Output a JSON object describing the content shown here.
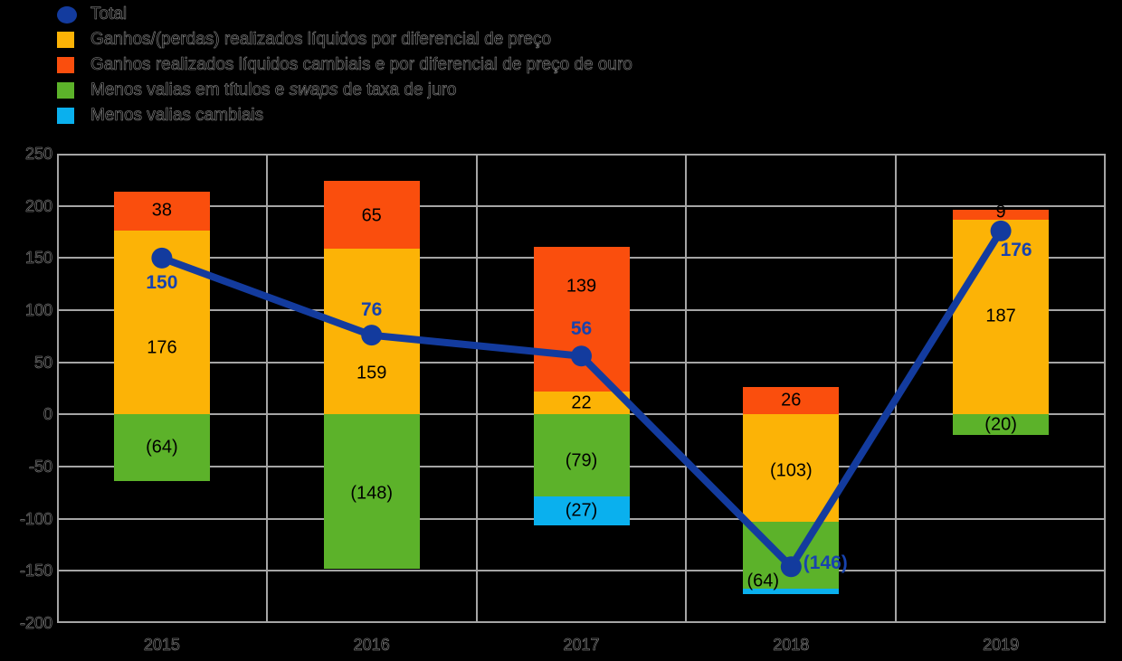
{
  "legend": {
    "items": [
      {
        "marker": "circle",
        "color": "#133b9e",
        "parts": [
          {
            "text": "Total"
          }
        ]
      },
      {
        "marker": "square",
        "color": "#fcb306",
        "parts": [
          {
            "text": "Ganhos/(perdas) realizados líquidos por diferencial de preço"
          }
        ]
      },
      {
        "marker": "square",
        "color": "#fa4e0d",
        "parts": [
          {
            "text": "Ganhos realizados líquidos cambiais e por diferencial de preço de ouro"
          }
        ]
      },
      {
        "marker": "square",
        "color": "#5cb22a",
        "parts": [
          {
            "text": "Menos valias em títulos e "
          },
          {
            "text": "swaps",
            "italic": true
          },
          {
            "text": " de taxa de juro"
          }
        ]
      },
      {
        "marker": "square",
        "color": "#0ab0ee",
        "parts": [
          {
            "text": "Menos valias cambiais"
          }
        ]
      }
    ]
  },
  "chart_data": {
    "type": "bar",
    "subtype": "stacked-bars-with-total-line",
    "title": "",
    "xlabel": "",
    "ylabel": "",
    "categories": [
      "2015",
      "2016",
      "2017",
      "2018",
      "2019"
    ],
    "series": [
      {
        "name": "Ganhos/(perdas) realizados líquidos por diferencial de preço",
        "color": "#fcb306",
        "values": [
          176,
          159,
          22,
          -103,
          187
        ],
        "labels": [
          "176",
          "159",
          "22",
          "(103)",
          "187"
        ],
        "label_dx": [
          0,
          0,
          0,
          0,
          0
        ],
        "label_dy": [
          28,
          46,
          0,
          3,
          0
        ]
      },
      {
        "name": "Ganhos realizados líquidos cambiais e por diferencial de preço de ouro",
        "color": "#fa4e0d",
        "values": [
          38,
          65,
          139,
          26,
          9
        ],
        "labels": [
          "38",
          "65",
          "139",
          "26",
          "9"
        ],
        "label_dx": [
          0,
          0,
          0,
          0,
          0
        ],
        "label_dy": [
          0,
          2,
          -36,
          0,
          -2
        ]
      },
      {
        "name": "Menos valias em títulos e swaps de taxa de juro",
        "color": "#5cb22a",
        "values": [
          -64,
          -148,
          -79,
          -64,
          -20
        ],
        "labels": [
          "(64)",
          "(148)",
          "(79)",
          "(64)",
          "(20)"
        ],
        "label_dx": [
          0,
          0,
          0,
          -31,
          0
        ],
        "label_dy": [
          0,
          2,
          6,
          29,
          0
        ]
      },
      {
        "name": "Menos valias cambiais",
        "color": "#0ab0ee",
        "values": [
          0,
          0,
          -27,
          -5,
          0
        ],
        "labels": [
          "",
          "",
          "(27)",
          "",
          ""
        ],
        "label_dx": [
          0,
          0,
          0,
          0,
          0
        ],
        "label_dy": [
          0,
          0,
          0,
          0,
          0
        ]
      }
    ],
    "line_series": {
      "name": "Total",
      "color": "#133b9e",
      "label_color": "#1843ae",
      "values": [
        150,
        76,
        56,
        -146,
        176
      ],
      "labels": [
        "150",
        "76",
        "56",
        "(146)",
        "176"
      ],
      "label_dx": [
        0,
        0,
        0,
        38,
        17
      ],
      "label_dy": [
        28,
        -28,
        -30,
        -4,
        22
      ]
    },
    "ylim": [
      -200,
      250
    ],
    "ytick_step": 50,
    "yticks": [
      "250",
      "200",
      "150",
      "100",
      "50",
      "0",
      "-50",
      "-100",
      "-150",
      "-200"
    ],
    "grid": true,
    "legend_position": "top-left"
  }
}
